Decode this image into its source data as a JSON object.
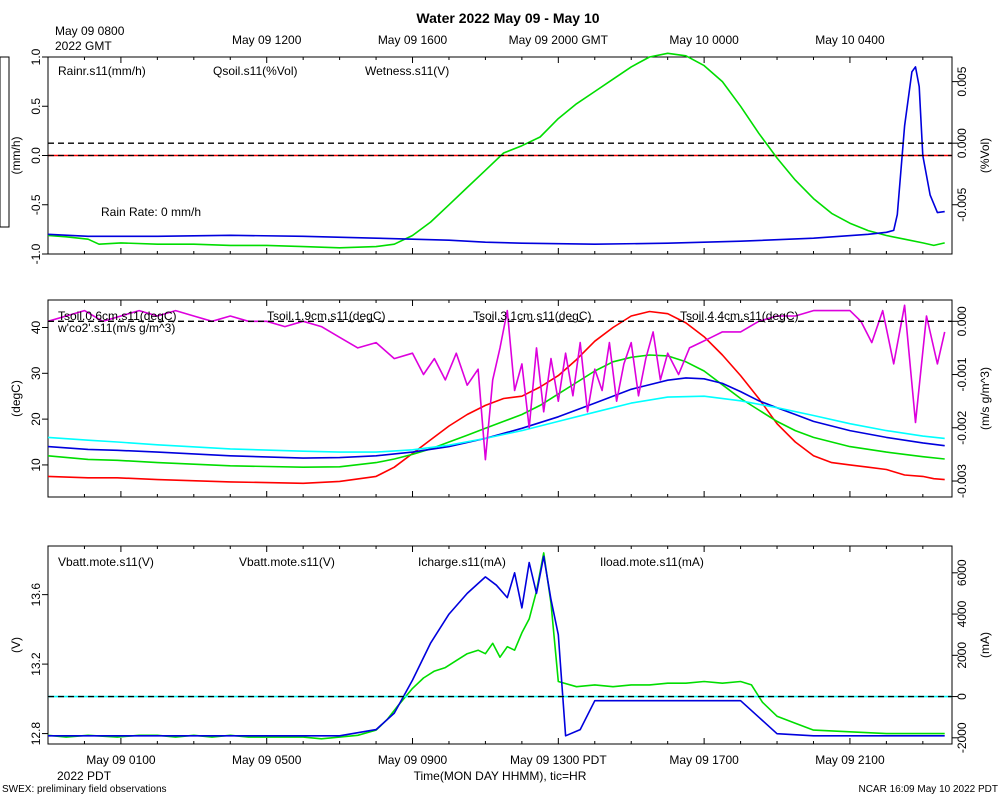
{
  "figure": {
    "title": "Water 2022 May 09 - May 10",
    "top_axis_ticks": [
      "May 09 1200",
      "May 09 1600",
      "May 09 2000 GMT",
      "May 10 0000",
      "May 10 0400"
    ],
    "top_axis_start_line1": "May 09 0800",
    "top_axis_start_line2": "2022 GMT",
    "bottom_axis_ticks": [
      "May 09 0100",
      "May 09 0500",
      "May 09 0900",
      "May 09 1300 PDT",
      "May 09 1700",
      "May 09 2100"
    ],
    "bottom_axis_start": "2022 PDT",
    "xlabel": "Time(MON DAY HHMM), tic=HR",
    "footer_left": "SWEX: preliminary field observations",
    "footer_right": "NCAR 16:09 May 10 2022 PDT"
  },
  "chart_data": [
    {
      "type": "line",
      "panel": "water",
      "x_unit": "hours since May 09 0000 PDT",
      "x_range": [
        -1.0,
        23.8
      ],
      "left_axis": {
        "label": "(mm/h)",
        "range": [
          -1.0,
          1.0
        ],
        "ticks": [
          1.0,
          0.5,
          0.0,
          -0.5,
          -1.0
        ],
        "tick_labels": [
          "1.0",
          "0.5",
          "0.0",
          "-0.5",
          "-1.0"
        ]
      },
      "right_axis": {
        "label": "(%Vol)",
        "range": [
          -0.009,
          0.007
        ],
        "ticks": [
          0.005,
          0.0,
          -0.005
        ],
        "tick_labels": [
          "0.005",
          "0.000",
          "-0.005"
        ]
      },
      "ref_lines": [
        {
          "axis": "left",
          "value": 0.0
        },
        {
          "axis": "right",
          "value": 0.0
        }
      ],
      "annotation": "Rain Rate: 0 mm/h",
      "series": [
        {
          "name": "Rainr.s11(mm/h)",
          "color": "#ff0000",
          "axis": "left",
          "x": [
            -1.0,
            23.8
          ],
          "values": [
            0.0,
            0.0
          ]
        },
        {
          "name": "Qsoil.s11(%Vol)",
          "color": "#00dd00",
          "axis": "right",
          "x": [
            -1,
            -0.5,
            0.1,
            0.4,
            1,
            2,
            3,
            4,
            5,
            6,
            7,
            8,
            8.5,
            9,
            9.5,
            10,
            10.5,
            11,
            11.5,
            12,
            12.5,
            13,
            13.5,
            14,
            14.5,
            15,
            15.5,
            16,
            16.5,
            17,
            17.5,
            18,
            18.5,
            19,
            19.5,
            20,
            20.5,
            21,
            21.5,
            22,
            22.5,
            23,
            23.3,
            23.6
          ],
          "values": [
            -0.0075,
            -0.0076,
            -0.0078,
            -0.0082,
            -0.0081,
            -0.0082,
            -0.0082,
            -0.0083,
            -0.0083,
            -0.0084,
            -0.0085,
            -0.0084,
            -0.0082,
            -0.0075,
            -0.0064,
            -0.005,
            -0.0036,
            -0.0022,
            -0.0008,
            -0.0002,
            0.0005,
            0.002,
            0.0032,
            0.0042,
            0.0052,
            0.0062,
            0.007,
            0.0073,
            0.0071,
            0.0063,
            0.005,
            0.003,
            0.0008,
            -0.0012,
            -0.003,
            -0.0045,
            -0.0057,
            -0.0065,
            -0.0071,
            -0.0075,
            -0.0078,
            -0.0081,
            -0.0083,
            -0.0081
          ]
        },
        {
          "name": "Wetness.s11(V)",
          "color": "#0000dd",
          "axis": "left",
          "x": [
            -1,
            0.1,
            0.9,
            2,
            4,
            6,
            8,
            9,
            10,
            11,
            12,
            14,
            16,
            18,
            20,
            21.5,
            22,
            22.2,
            22.3,
            22.5,
            22.7,
            22.8,
            22.9,
            23.0,
            23.2,
            23.4,
            23.6
          ],
          "values": [
            -0.8,
            -0.82,
            -0.82,
            -0.82,
            -0.81,
            -0.82,
            -0.84,
            -0.85,
            -0.86,
            -0.88,
            -0.89,
            -0.9,
            -0.89,
            -0.87,
            -0.84,
            -0.8,
            -0.78,
            -0.76,
            -0.6,
            0.3,
            0.85,
            0.9,
            0.7,
            0.0,
            -0.4,
            -0.58,
            -0.57
          ]
        }
      ]
    },
    {
      "type": "line",
      "panel": "soil-temperature",
      "x_unit": "hours since May 09 0000 PDT",
      "x_range": [
        -1.0,
        23.8
      ],
      "left_axis": {
        "label": "(degC)",
        "range": [
          3,
          46
        ],
        "ticks": [
          10,
          20,
          30,
          40
        ],
        "tick_labels": [
          "10",
          "20",
          "30",
          "40"
        ]
      },
      "right_axis": {
        "label": "(m/s g/m^3)",
        "range": [
          -0.0033,
          0.0004
        ],
        "ticks": [
          0.0,
          -0.001,
          -0.002,
          -0.003
        ],
        "tick_labels": [
          "0.000",
          "-0.001",
          "-0.002",
          "-0.003"
        ]
      },
      "ref_lines": [
        {
          "axis": "right",
          "value": 0.0
        }
      ],
      "series": [
        {
          "name": "Tsoil.0.6cm.s11(degC)",
          "color": "#ff0000",
          "axis": "left",
          "x": [
            -1,
            0.1,
            0.9,
            2,
            4,
            6,
            7,
            8,
            8.5,
            9,
            9.5,
            10,
            10.5,
            11,
            11.5,
            12,
            12.5,
            13,
            13.5,
            14,
            14.5,
            15,
            15.5,
            16,
            16.5,
            17,
            17.5,
            18,
            18.5,
            19,
            19.5,
            20,
            20.5,
            21,
            21.5,
            22,
            22.5,
            23,
            23.3,
            23.6
          ],
          "values": [
            7.5,
            7.2,
            7.2,
            6.8,
            6.3,
            6.0,
            6.4,
            7.5,
            9.5,
            12.5,
            15.5,
            18.5,
            21.0,
            23.0,
            24.5,
            25.0,
            27.0,
            29.5,
            33.0,
            37.0,
            40.0,
            42.5,
            43.5,
            43.0,
            41.0,
            38.0,
            34.0,
            29.5,
            24.5,
            19.0,
            15.0,
            12.0,
            10.5,
            10.0,
            9.5,
            9.0,
            7.8,
            7.5,
            7.0,
            6.8
          ]
        },
        {
          "name": "Tsoil.1.9cm.s11(degC)",
          "color": "#00dd00",
          "axis": "left",
          "x": [
            -1,
            0.1,
            0.9,
            2,
            4,
            6,
            7,
            8,
            8.5,
            9,
            9.5,
            10,
            10.5,
            11,
            11.5,
            12,
            12.5,
            13,
            13.5,
            14,
            14.5,
            15,
            15.5,
            16,
            16.5,
            17,
            17.5,
            18,
            18.5,
            19,
            19.5,
            20,
            21,
            22,
            23,
            23.6
          ],
          "values": [
            12.0,
            11.2,
            11.0,
            10.5,
            9.8,
            9.5,
            9.6,
            10.5,
            11.3,
            12.3,
            13.5,
            15.0,
            16.5,
            18.0,
            19.5,
            21.0,
            23.0,
            25.5,
            28.0,
            30.5,
            32.5,
            33.5,
            34.0,
            33.8,
            32.5,
            30.5,
            27.5,
            24.5,
            22.0,
            19.5,
            17.5,
            16.0,
            14.0,
            12.8,
            11.8,
            11.3
          ]
        },
        {
          "name": "Tsoil.3.1cm.s11(degC)",
          "color": "#0000dd",
          "axis": "left",
          "x": [
            -1,
            0.1,
            0.9,
            2,
            4,
            6,
            7,
            8,
            9,
            10,
            11,
            12,
            13,
            14,
            15,
            16,
            16.5,
            17,
            17.5,
            18,
            18.5,
            19,
            19.5,
            20,
            21,
            22,
            23,
            23.6
          ],
          "values": [
            14.0,
            13.4,
            13.2,
            12.8,
            12.0,
            11.5,
            11.6,
            12.0,
            12.8,
            14.0,
            15.8,
            18.0,
            20.5,
            23.5,
            26.5,
            28.5,
            29.0,
            28.8,
            27.8,
            26.0,
            24.0,
            22.5,
            21.0,
            19.5,
            17.5,
            16.0,
            14.8,
            14.2
          ]
        },
        {
          "name": "Tsoil.4.4cm.s11(degC)",
          "color": "#00ffff",
          "axis": "left",
          "x": [
            -1,
            0.1,
            0.9,
            2,
            4,
            6,
            7,
            8,
            9,
            10,
            11,
            12,
            13,
            14,
            15,
            16,
            17,
            18,
            19,
            20,
            21,
            22,
            23,
            23.6
          ],
          "values": [
            16.0,
            15.4,
            15.0,
            14.4,
            13.5,
            13.0,
            12.8,
            12.8,
            13.3,
            14.3,
            15.8,
            17.5,
            19.5,
            21.5,
            23.5,
            24.8,
            25.0,
            24.0,
            22.5,
            20.8,
            19.0,
            17.5,
            16.3,
            15.8
          ]
        },
        {
          "name": "w'co2'.s11(m/s g/m^3)",
          "color": "#dd00dd",
          "axis": "right",
          "x": [
            -1,
            -0.5,
            0,
            0.5,
            1,
            1.5,
            2,
            2.5,
            3,
            3.5,
            4,
            4.5,
            5,
            5.5,
            6,
            6.5,
            7,
            7.5,
            8,
            8.5,
            9,
            9.3,
            9.6,
            9.9,
            10.2,
            10.5,
            10.8,
            11.0,
            11.2,
            11.4,
            11.6,
            11.8,
            12.0,
            12.2,
            12.4,
            12.6,
            12.8,
            13.0,
            13.2,
            13.4,
            13.6,
            13.8,
            14.0,
            14.2,
            14.4,
            14.6,
            14.8,
            15.0,
            15.2,
            15.4,
            15.6,
            15.8,
            16.0,
            16.3,
            16.6,
            16.9,
            17.2,
            17.5,
            18,
            18.5,
            19,
            19.5,
            20,
            20.5,
            21,
            21.3,
            21.6,
            21.9,
            22.2,
            22.5,
            22.8,
            23.1,
            23.4,
            23.6
          ],
          "values": [
            0.0,
            0.0001,
            0.0002,
            0.0,
            0.0001,
            0.0002,
            0.0001,
            0.0002,
            0.0001,
            0.0,
            0.0001,
            0.0,
            0.0,
            -0.0001,
            0.0,
            -0.0001,
            -0.0003,
            -0.0005,
            -0.0004,
            -0.0007,
            -0.0006,
            -0.001,
            -0.0007,
            -0.0011,
            -0.0006,
            -0.0012,
            -0.0009,
            -0.0026,
            -0.0011,
            -0.0005,
            0.0002,
            -0.0013,
            -0.0008,
            -0.002,
            -0.0005,
            -0.0017,
            -0.0007,
            -0.0015,
            -0.0006,
            -0.0014,
            -0.0004,
            -0.0017,
            -0.0009,
            -0.0013,
            -0.0004,
            -0.0015,
            -0.0008,
            -0.0004,
            -0.0014,
            -0.0007,
            -0.0002,
            -0.0011,
            -0.0006,
            -0.001,
            -0.0005,
            -0.0004,
            -0.0003,
            -0.0002,
            -0.0002,
            0.0,
            0.0001,
            0.0001,
            0.0002,
            0.0002,
            0.0002,
            0.0,
            -0.0004,
            0.0002,
            -0.0008,
            0.0003,
            -0.0019,
            0.0001,
            -0.0008,
            -0.0002
          ]
        }
      ]
    },
    {
      "type": "line",
      "panel": "power",
      "x_unit": "hours since May 09 0000 PDT",
      "x_range": [
        -1.0,
        23.8
      ],
      "left_axis": {
        "label": "(V)",
        "range": [
          12.74,
          13.88
        ],
        "ticks": [
          12.8,
          13.2,
          13.6
        ],
        "tick_labels": [
          "12.8",
          "13.2",
          "13.6"
        ]
      },
      "right_axis": {
        "label": "(mA)",
        "range": [
          -2300,
          7300
        ],
        "ticks": [
          6000,
          4000,
          2000,
          0,
          -2000
        ],
        "tick_labels": [
          "6000",
          "4000",
          "2000",
          "0",
          "-2000"
        ]
      },
      "ref_lines": [
        {
          "axis": "right",
          "value": 0
        }
      ],
      "series": [
        {
          "name": "Vbatt.mote.s11(V)",
          "color": "#ff0000",
          "axis": "left",
          "x": [],
          "values": []
        },
        {
          "name": "Vbatt.mote.s11(V)",
          "color": "#00dd00",
          "axis": "left",
          "x": [
            -1,
            -0.5,
            0.1,
            0.9,
            1.5,
            2,
            2.5,
            3,
            3.5,
            4,
            4.5,
            5,
            5.5,
            6,
            6.5,
            7,
            7.5,
            8,
            8.3,
            8.6,
            9,
            9.3,
            9.6,
            9.9,
            10.2,
            10.5,
            10.8,
            11.0,
            11.2,
            11.4,
            11.6,
            11.8,
            12.0,
            12.2,
            12.4,
            12.6,
            12.8,
            13.0,
            13.5,
            14,
            14.5,
            15,
            15.5,
            16,
            16.5,
            17,
            17.5,
            18,
            18.3,
            18.6,
            19,
            19.5,
            20,
            21,
            22,
            23,
            23.6
          ],
          "values": [
            12.79,
            12.78,
            12.79,
            12.78,
            12.79,
            12.79,
            12.78,
            12.79,
            12.78,
            12.79,
            12.78,
            12.78,
            12.78,
            12.78,
            12.77,
            12.78,
            12.79,
            12.82,
            12.88,
            12.96,
            13.06,
            13.12,
            13.16,
            13.18,
            13.22,
            13.26,
            13.28,
            13.26,
            13.32,
            13.24,
            13.3,
            13.28,
            13.38,
            13.46,
            13.62,
            13.84,
            13.55,
            13.1,
            13.07,
            13.08,
            13.07,
            13.08,
            13.08,
            13.09,
            13.09,
            13.1,
            13.09,
            13.1,
            13.08,
            12.98,
            12.9,
            12.86,
            12.82,
            12.81,
            12.8,
            12.8,
            12.8
          ]
        },
        {
          "name": "Icharge.s11(mA)",
          "color": "#0000dd",
          "axis": "right",
          "x": [
            -1,
            0.1,
            0.9,
            2,
            4,
            6,
            7,
            8,
            8.5,
            9,
            9.5,
            10,
            10.5,
            11,
            11.3,
            11.6,
            11.8,
            12.0,
            12.2,
            12.4,
            12.6,
            12.8,
            13.0,
            13.2,
            13.6,
            14,
            15,
            16,
            17,
            18,
            18.5,
            19,
            20,
            22,
            23.6
          ],
          "values": [
            -1900,
            -1900,
            -1900,
            -1900,
            -1900,
            -1900,
            -1900,
            -1600,
            -800,
            800,
            2600,
            4000,
            5000,
            5800,
            5400,
            4800,
            6000,
            4300,
            6500,
            5000,
            6800,
            4700,
            3000,
            -1900,
            -1600,
            -200,
            -200,
            -200,
            -200,
            -200,
            -1000,
            -1800,
            -1900,
            -1900,
            -1900
          ]
        },
        {
          "name": "Iload.mote.s11(mA)",
          "color": "#00ffff",
          "axis": "right",
          "x": [
            -1.0,
            23.8
          ],
          "values": [
            0,
            0
          ]
        }
      ]
    }
  ]
}
